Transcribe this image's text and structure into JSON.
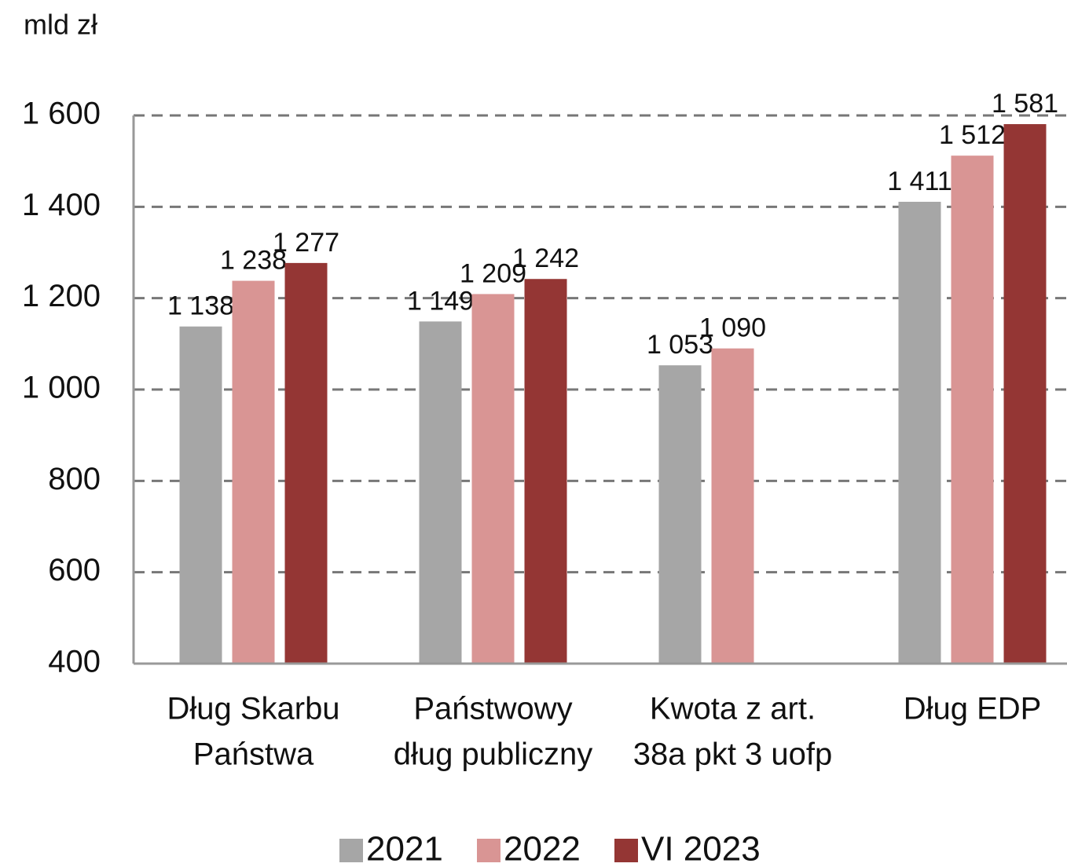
{
  "chart_data": {
    "type": "bar",
    "y_axis_label": "mld zł",
    "categories": [
      [
        "Dług Skarbu",
        "Państwa"
      ],
      [
        "Państwowy",
        "dług publiczny"
      ],
      [
        "Kwota z art.",
        "38a pkt 3 uofp"
      ],
      [
        "Dług EDP"
      ]
    ],
    "series": [
      {
        "name": "2021",
        "color": "#a6a6a6",
        "values": [
          1138,
          1149,
          1053,
          1411
        ],
        "value_labels": [
          "1 138",
          "1 149",
          "1 053",
          "1 411"
        ]
      },
      {
        "name": "2022",
        "color": "#d99594",
        "values": [
          1238,
          1209,
          1090,
          1512
        ],
        "value_labels": [
          "1 238",
          "1 209",
          "1 090",
          "1 512"
        ]
      },
      {
        "name": "VI 2023",
        "color": "#943634",
        "values": [
          1277,
          1242,
          null,
          1581
        ],
        "value_labels": [
          "1 277",
          "1 242",
          null,
          "1 581"
        ]
      }
    ],
    "ylim": [
      400,
      1600
    ],
    "yticks": [
      400,
      600,
      800,
      {
        "value": 1000,
        "label": "1 000"
      },
      {
        "value": 1200,
        "label": "1 200"
      },
      {
        "value": 1400,
        "label": "1 400"
      },
      {
        "value": 1600,
        "label": "1 600"
      }
    ],
    "grid": true,
    "legend": "bottom"
  }
}
